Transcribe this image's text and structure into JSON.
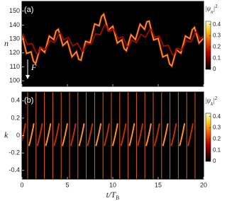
{
  "chart_data": [
    {
      "type": "heatmap",
      "panel_label": "(a)",
      "y_label": "n",
      "annotation": "F",
      "xlim": [
        0,
        20
      ],
      "xticks": [
        0,
        5,
        10,
        15,
        20
      ],
      "ylim": [
        96,
        157
      ],
      "yticks": [
        100,
        110,
        120,
        130,
        140,
        150
      ],
      "colormap": "hot",
      "colorbar": {
        "label": {
          "base": "|ψ",
          "sub": "n",
          "close": "|",
          "sup": "2"
        },
        "lim": [
          0,
          0.43
        ],
        "ticks": [
          0,
          0.1,
          0.2,
          0.3,
          0.4
        ]
      }
    },
    {
      "type": "heatmap",
      "panel_label": "(b)",
      "y_label": "k",
      "x_label": {
        "base": "t/T",
        "sub": "B"
      },
      "xlim": [
        0,
        20
      ],
      "xticks": [
        0,
        5,
        10,
        15,
        20
      ],
      "ylim": [
        -0.5,
        0.5
      ],
      "yticks": [
        -0.4,
        -0.2,
        0,
        0.2,
        0.4
      ],
      "colormap": "hot",
      "colorbar": {
        "label": {
          "base": "|ψ",
          "sub": "k",
          "close": "|",
          "sup": "2"
        },
        "lim": [
          0,
          0.43
        ],
        "ticks": [
          0,
          0.1,
          0.2,
          0.3,
          0.4
        ]
      }
    }
  ]
}
